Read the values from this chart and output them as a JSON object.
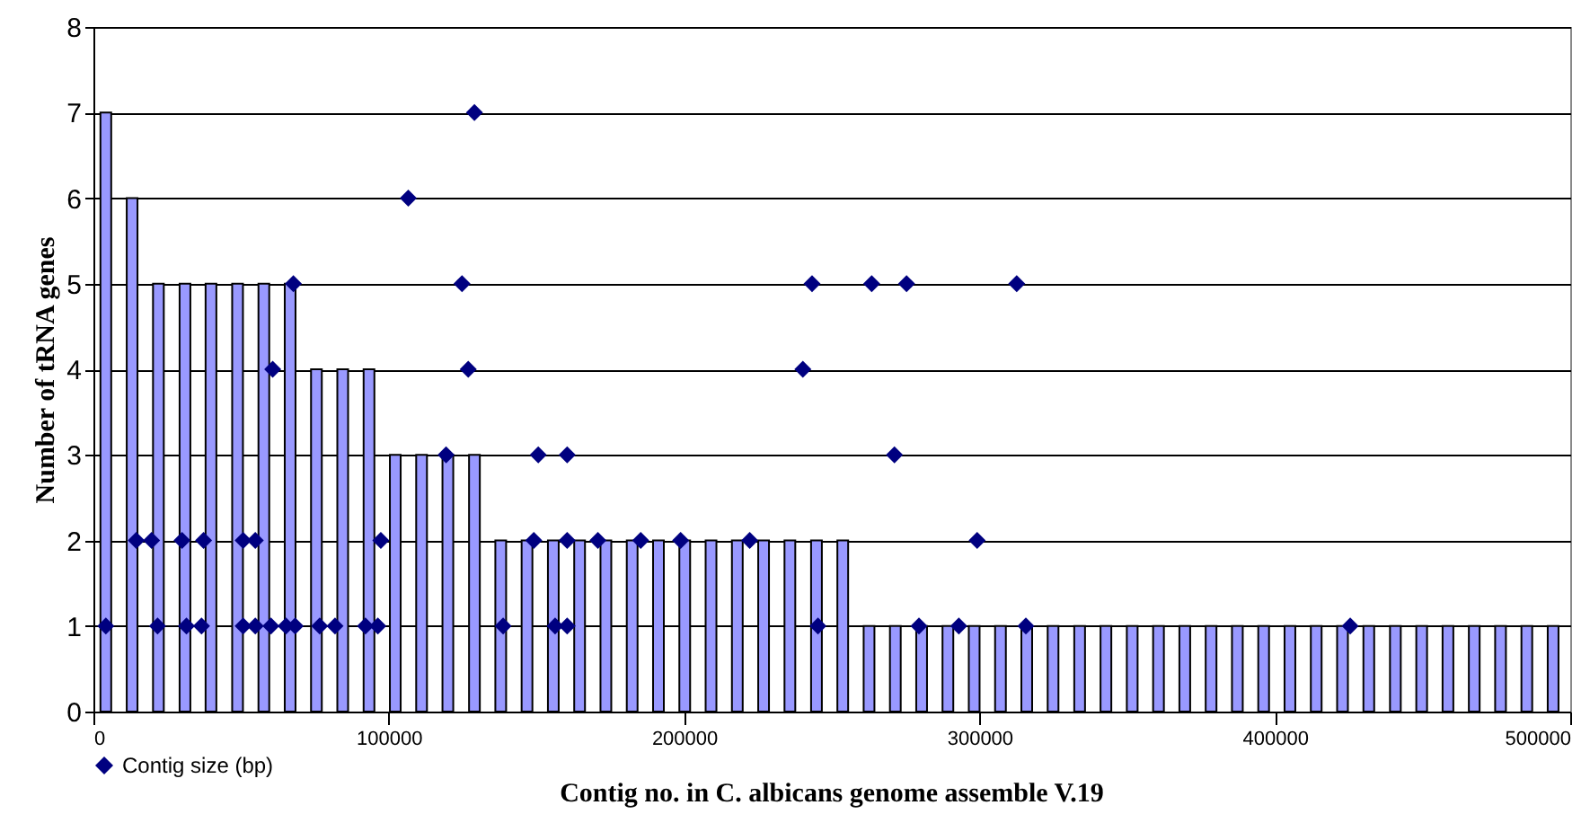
{
  "chart_data": {
    "type": "bar",
    "xlabel": "Contig no. in C. albicans genome assemble V.19",
    "ylabel": "Number of tRNA genes",
    "series": [
      {
        "color": "#9999ff",
        "x": [
          4200,
          13100,
          22000,
          31000,
          39800,
          48800,
          57700,
          66600,
          75500,
          84400,
          93300,
          102200,
          111100,
          120000,
          129000,
          137900,
          146800,
          155700,
          164600,
          173500,
          182400,
          191300,
          200200,
          209100,
          218000,
          226900,
          235800,
          244800,
          253700,
          262600,
          271500,
          280400,
          289300,
          298200,
          307100,
          316000,
          324900,
          333900,
          342800,
          351700,
          360600,
          369500,
          378400,
          387300,
          396200,
          405100,
          414000,
          422900,
          431800,
          440800,
          449700,
          458600,
          467500,
          476400,
          485300,
          494200
        ],
        "values": [
          7,
          6,
          5,
          5,
          5,
          5,
          5,
          5,
          4,
          4,
          4,
          3,
          3,
          3,
          3,
          2,
          2,
          2,
          2,
          2,
          2,
          2,
          2,
          2,
          2,
          2,
          2,
          2,
          2,
          1,
          1,
          1,
          1,
          1,
          1,
          1,
          1,
          1,
          1,
          1,
          1,
          1,
          1,
          1,
          1,
          1,
          1,
          1,
          1,
          1,
          1,
          1,
          1,
          1,
          1,
          1
        ]
      },
      {
        "type": "scatter",
        "name": "Contig size (bp)",
        "color": "#000080",
        "x": [
          4200,
          21700,
          31500,
          36600,
          50700,
          54800,
          60100,
          65200,
          68300,
          76600,
          81800,
          92100,
          96300,
          138700,
          156300,
          160400,
          245300,
          279500,
          293000,
          315700,
          425500,
          14500,
          19700,
          30000,
          37300,
          50700,
          54800,
          97300,
          149100,
          160400,
          170800,
          185300,
          198800,
          222200,
          299200,
          119400,
          150600,
          160400,
          271200,
          60700,
          126900,
          240200,
          67700,
          124800,
          243300,
          263500,
          275300,
          312600,
          106600,
          129000
        ],
        "values": [
          1,
          1,
          1,
          1,
          1,
          1,
          1,
          1,
          1,
          1,
          1,
          1,
          1,
          1,
          1,
          1,
          1,
          1,
          1,
          1,
          1,
          2,
          2,
          2,
          2,
          2,
          2,
          2,
          2,
          2,
          2,
          2,
          2,
          2,
          2,
          3,
          3,
          3,
          3,
          4,
          4,
          4,
          5,
          5,
          5,
          5,
          5,
          5,
          6,
          7
        ]
      }
    ],
    "xlim": [
      0,
      500000
    ],
    "xticks": [
      0,
      100000,
      200000,
      300000,
      400000,
      500000
    ],
    "ylim": [
      0,
      8
    ],
    "yticks": [
      0,
      1,
      2,
      3,
      4,
      5,
      6,
      7,
      8
    ],
    "grid": "y",
    "legend": "bottom",
    "marker": "diamond"
  }
}
